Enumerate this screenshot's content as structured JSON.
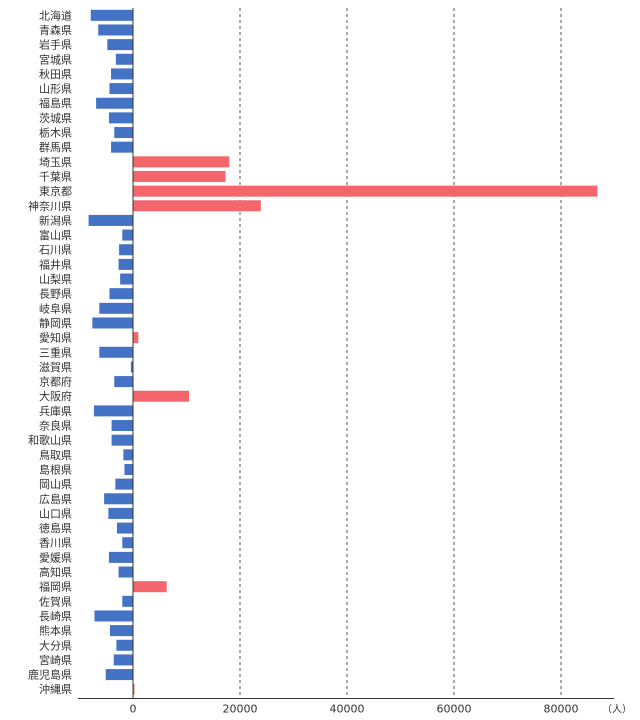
{
  "chart_data": {
    "type": "bar",
    "orientation": "horizontal",
    "unit": "（人）",
    "xlim": [
      -10000,
      90000
    ],
    "xticks": [
      0,
      20000,
      40000,
      60000,
      80000
    ],
    "grid": true,
    "colors": {
      "negative": "#4472c4",
      "positive": "#f4666b"
    },
    "categories": [
      "北海道",
      "青森県",
      "岩手県",
      "宮城県",
      "秋田県",
      "山形県",
      "福島県",
      "茨城県",
      "栃木県",
      "群馬県",
      "埼玉県",
      "千葉県",
      "東京都",
      "神奈川県",
      "新潟県",
      "富山県",
      "石川県",
      "福井県",
      "山梨県",
      "長野県",
      "岐阜県",
      "静岡県",
      "愛知県",
      "三重県",
      "滋賀県",
      "京都府",
      "大阪府",
      "兵庫県",
      "奈良県",
      "和歌山県",
      "鳥取県",
      "島根県",
      "岡山県",
      "広島県",
      "山口県",
      "徳島県",
      "香川県",
      "愛媛県",
      "高知県",
      "福岡県",
      "佐賀県",
      "長崎県",
      "熊本県",
      "大分県",
      "宮崎県",
      "鹿児島県",
      "沖縄県"
    ],
    "values": [
      -7900,
      -6500,
      -4800,
      -3200,
      -4100,
      -4400,
      -6900,
      -4500,
      -3500,
      -4100,
      18000,
      17300,
      86800,
      23900,
      -8300,
      -2000,
      -2600,
      -2700,
      -2400,
      -4400,
      -6300,
      -7600,
      1000,
      -6300,
      -400,
      -3500,
      10500,
      -7300,
      -4000,
      -4000,
      -1800,
      -1600,
      -3300,
      -5400,
      -4600,
      -3000,
      -2000,
      -4500,
      -2700,
      6300,
      -2000,
      -7200,
      -4300,
      -3100,
      -3600,
      -5100,
      200
    ]
  }
}
